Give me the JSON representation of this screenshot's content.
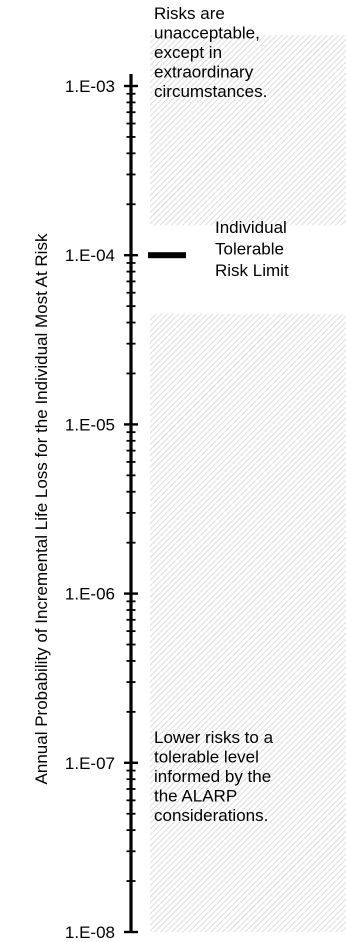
{
  "chart_data": {
    "type": "risk_scale",
    "ylabel": "Annual Probability of Incremental Life Loss for the Individual Most At Risk",
    "yscale": "log",
    "ylim": [
      1e-08,
      0.001
    ],
    "ticks": [
      {
        "value": 0.001,
        "label": "1.E-03"
      },
      {
        "value": 0.0001,
        "label": "1.E-04"
      },
      {
        "value": 1e-05,
        "label": "1.E-05"
      },
      {
        "value": 1e-06,
        "label": "1.E-06"
      },
      {
        "value": 1e-07,
        "label": "1.E-07"
      },
      {
        "value": 1e-08,
        "label": "1.E-08"
      }
    ],
    "regions": [
      {
        "name": "unacceptable",
        "y_from": 0.00015,
        "y_to": 0.002,
        "text": [
          "Risks are",
          "unacceptable,",
          "except in",
          "extraordinary",
          "circumstances."
        ]
      },
      {
        "name": "tolerable",
        "y_from": 1e-08,
        "y_to": 4.5e-05,
        "text": [
          "Lower risks to a",
          "tolerable level",
          "informed by the",
          "the ALARP",
          "considerations."
        ]
      }
    ],
    "limit": {
      "value": 0.0001,
      "text": [
        "Individual",
        "Tolerable",
        "Risk Limit"
      ]
    }
  }
}
